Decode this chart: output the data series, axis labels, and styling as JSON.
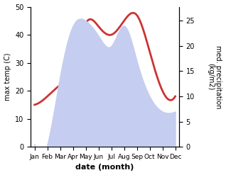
{
  "months": [
    "Jan",
    "Feb",
    "Mar",
    "Apr",
    "May",
    "Jun",
    "Jul",
    "Aug",
    "Sep",
    "Oct",
    "Nov",
    "Dec"
  ],
  "temperature": [
    15,
    18,
    22,
    28,
    44,
    43,
    40,
    45,
    47,
    34,
    20,
    18
  ],
  "precipitation": [
    0.5,
    0.5,
    14,
    24,
    25,
    22,
    20,
    24,
    17,
    10,
    7,
    7
  ],
  "temp_color": "#cc3333",
  "precip_fill_color": "#c5cef0",
  "left_ylim": [
    0,
    50
  ],
  "right_ylim": [
    0,
    27.78
  ],
  "left_ylabel": "max temp (C)",
  "right_ylabel": "med. precipitation\n(kg/m2)",
  "xlabel": "date (month)",
  "temp_linewidth": 2.0,
  "fig_width": 3.18,
  "fig_height": 2.47,
  "dpi": 100,
  "left_yticks": [
    0,
    10,
    20,
    30,
    40,
    50
  ],
  "right_yticks": [
    0,
    5,
    10,
    15,
    20,
    25
  ]
}
